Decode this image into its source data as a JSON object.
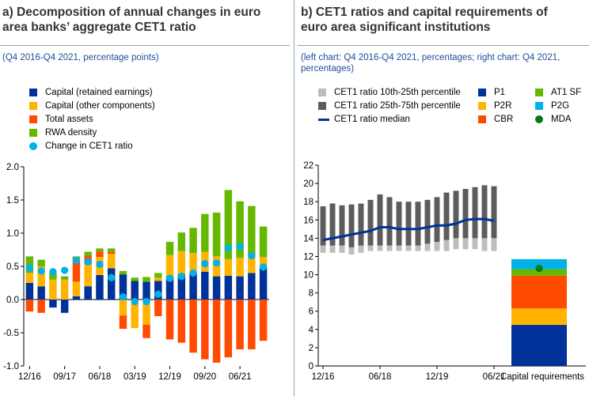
{
  "panel_a": {
    "title_line1": "a) Decomposition of annual changes in euro",
    "title_line2": "area banks’ aggregate CET1 ratio",
    "subtitle": "(Q4 2016-Q4 2021, percentage points)",
    "legend": [
      {
        "label": "Capital (retained earnings)",
        "color": "#003299",
        "kind": "box"
      },
      {
        "label": "Capital (other components)",
        "color": "#ffb400",
        "kind": "box"
      },
      {
        "label": "Total assets",
        "color": "#ff4b00",
        "kind": "box"
      },
      {
        "label": "RWA density",
        "color": "#65b800",
        "kind": "box"
      },
      {
        "label": "Change in CET1 ratio",
        "color": "#00b1ea",
        "kind": "dot"
      }
    ]
  },
  "panel_b": {
    "title_line1": "b) CET1 ratios and capital requirements of",
    "title_line2": "euro area significant institutions",
    "subtitle_line1": "(left chart: Q4 2016-Q4 2021, percentages; right chart: Q4 2021,",
    "subtitle_line2": "percentages)",
    "legend_left": [
      {
        "label": "CET1 ratio 10th-25th percentile",
        "color": "#bdbdbd",
        "kind": "box"
      },
      {
        "label": "CET1 ratio 25th-75th percentile",
        "color": "#5c5c5c",
        "kind": "box"
      },
      {
        "label": "CET1 ratio median",
        "color": "#003299",
        "kind": "line"
      }
    ],
    "legend_right": [
      {
        "label": "P1",
        "color": "#003299",
        "kind": "box"
      },
      {
        "label": "AT1 SF",
        "color": "#65b800",
        "kind": "box"
      },
      {
        "label": "P2R",
        "color": "#ffb400",
        "kind": "box"
      },
      {
        "label": "P2G",
        "color": "#00b1ea",
        "kind": "box"
      },
      {
        "label": "CBR",
        "color": "#ff4b00",
        "kind": "box"
      },
      {
        "label": "MDA",
        "color": "#007816",
        "kind": "dot"
      }
    ]
  },
  "chart_data": [
    {
      "type": "bar",
      "stacked": true,
      "ylim": [
        -1.0,
        2.0
      ],
      "yticks": [
        "2.0",
        "1.5",
        "1.0",
        "0.5",
        "0.0",
        "-0.5",
        "-1.0"
      ],
      "ytick_values": [
        2.0,
        1.5,
        1.0,
        0.5,
        0.0,
        -0.5,
        -1.0
      ],
      "xtick_labels": [
        "12/16",
        "09/17",
        "06/18",
        "03/19",
        "12/19",
        "09/20",
        "06/21"
      ],
      "xtick_index": [
        0,
        3,
        6,
        9,
        12,
        15,
        18
      ],
      "periods": 21,
      "series": [
        {
          "name": "Capital (retained earnings)",
          "color": "#003299",
          "values": [
            0.25,
            0.2,
            -0.12,
            -0.2,
            0.05,
            0.2,
            0.37,
            0.47,
            0.38,
            0.28,
            0.27,
            0.28,
            0.35,
            0.38,
            0.4,
            0.42,
            0.35,
            0.36,
            0.35,
            0.4,
            0.47
          ]
        },
        {
          "name": "Capital (other components)",
          "color": "#ffb400",
          "values": [
            0.15,
            0.3,
            0.3,
            0.3,
            0.22,
            0.33,
            0.27,
            0.22,
            -0.24,
            -0.43,
            -0.38,
            0.05,
            0.32,
            0.35,
            0.3,
            0.3,
            0.3,
            0.25,
            0.28,
            0.25,
            0.17
          ]
        },
        {
          "name": "Total assets",
          "color": "#ff4b00",
          "values": [
            -0.18,
            -0.2,
            0.0,
            0.0,
            0.33,
            0.13,
            0.08,
            0.03,
            -0.2,
            0.0,
            -0.2,
            -0.25,
            -0.6,
            -0.65,
            -0.8,
            -0.9,
            -0.95,
            -0.87,
            -0.75,
            -0.75,
            -0.62
          ]
        },
        {
          "name": "RWA density",
          "color": "#65b800",
          "values": [
            0.25,
            0.1,
            0.1,
            0.05,
            0.05,
            0.06,
            0.05,
            0.05,
            0.05,
            0.05,
            0.07,
            0.07,
            0.2,
            0.28,
            0.38,
            0.57,
            0.66,
            1.04,
            0.85,
            0.76,
            0.46
          ]
        },
        {
          "name": "Change in CET1 ratio",
          "color": "#00b1ea",
          "kind": "dot",
          "values": [
            0.48,
            0.43,
            0.42,
            0.44,
            0.59,
            0.57,
            0.53,
            0.33,
            0.04,
            -0.03,
            -0.03,
            0.08,
            0.32,
            0.35,
            0.4,
            0.54,
            0.55,
            0.78,
            0.8,
            0.66,
            0.49
          ]
        }
      ]
    },
    {
      "type": "area",
      "ylim": [
        0,
        22
      ],
      "yticks": [
        "22",
        "20",
        "18",
        "16",
        "14",
        "12",
        "10",
        "8",
        "6",
        "4",
        "2",
        "0"
      ],
      "ytick_values": [
        22,
        20,
        18,
        16,
        14,
        12,
        10,
        8,
        6,
        4,
        2,
        0
      ],
      "xtick_labels": [
        "12/16",
        "06/18",
        "12/19",
        "06/21",
        "Capital requirements"
      ],
      "xtick_index": [
        0,
        6,
        12,
        18
      ],
      "periods": 19,
      "p10": [
        12.4,
        12.4,
        12.4,
        12.2,
        12.4,
        12.6,
        12.6,
        12.6,
        12.6,
        12.6,
        12.6,
        12.6,
        12.6,
        12.6,
        12.8,
        12.8,
        12.8,
        12.6,
        12.6
      ],
      "p25": [
        13.2,
        13.2,
        13.2,
        13.0,
        13.2,
        13.2,
        13.2,
        13.2,
        13.2,
        13.2,
        13.2,
        13.4,
        13.6,
        13.8,
        14.0,
        14.0,
        14.0,
        14.0,
        14.0
      ],
      "median": [
        13.8,
        14.0,
        14.2,
        14.4,
        14.6,
        14.8,
        15.2,
        15.2,
        15.0,
        15.0,
        15.0,
        15.2,
        15.4,
        15.4,
        15.6,
        16.0,
        16.1,
        16.1,
        15.9
      ],
      "p75": [
        17.5,
        17.8,
        17.6,
        17.7,
        17.8,
        18.2,
        18.8,
        18.5,
        18.0,
        18.0,
        18.0,
        18.2,
        18.5,
        19.0,
        19.2,
        19.4,
        19.6,
        19.8,
        19.7
      ],
      "requirements": [
        {
          "name": "P1",
          "color": "#003299",
          "value": 4.5
        },
        {
          "name": "P2R",
          "color": "#ffb400",
          "value": 1.8
        },
        {
          "name": "CBR",
          "color": "#ff4b00",
          "value": 3.6
        },
        {
          "name": "AT1 SF",
          "color": "#65b800",
          "value": 0.7
        },
        {
          "name": "P2G",
          "color": "#00b1ea",
          "value": 1.1
        }
      ],
      "mda": {
        "name": "MDA",
        "color": "#007816",
        "value": 10.7
      }
    }
  ]
}
